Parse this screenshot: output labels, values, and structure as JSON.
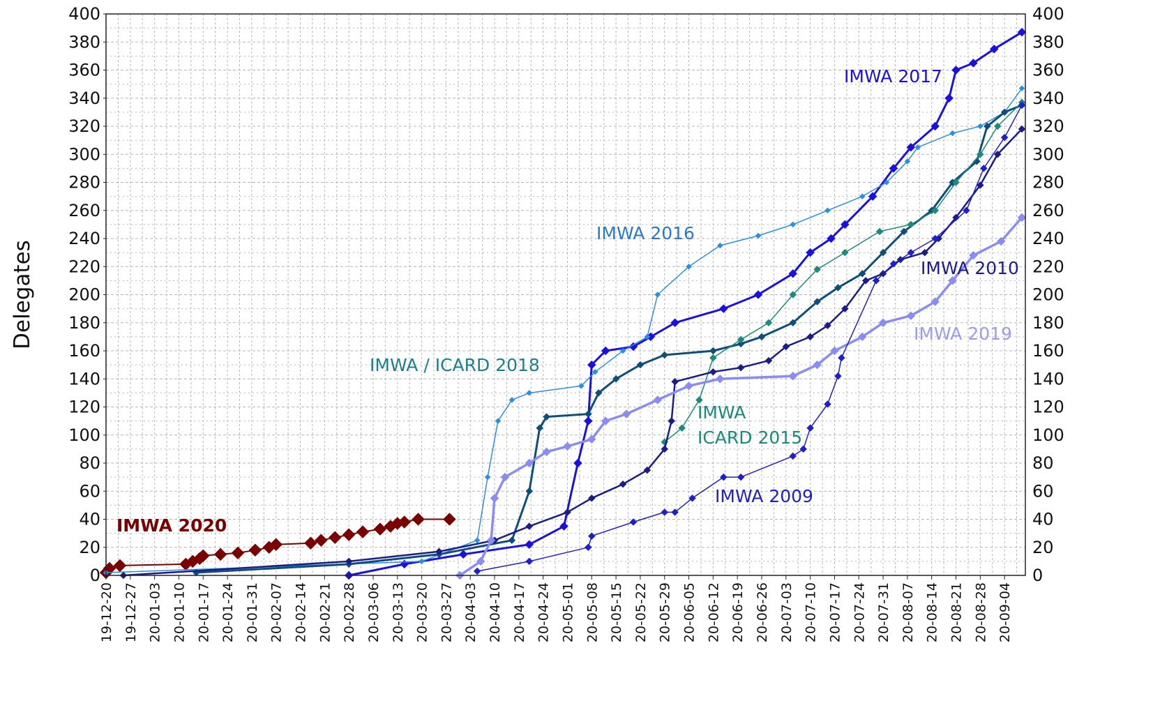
{
  "chart_data": {
    "type": "line",
    "title": "",
    "ylabel": "Delegates",
    "xlabel": "",
    "ylim": [
      0,
      400
    ],
    "yticks": [
      "0",
      "20",
      "40",
      "60",
      "80",
      "100",
      "120",
      "140",
      "160",
      "180",
      "200",
      "220",
      "240",
      "260",
      "280",
      "300",
      "320",
      "340",
      "360",
      "380",
      "400"
    ],
    "xlim": [
      "19-12-20",
      "20-09-10"
    ],
    "xticks": [
      "19-12-20",
      "19-12-27",
      "20-01-03",
      "20-01-10",
      "20-01-17",
      "20-01-24",
      "20-01-31",
      "20-02-07",
      "20-02-14",
      "20-02-21",
      "20-02-28",
      "20-03-06",
      "20-03-13",
      "20-03-20",
      "20-03-27",
      "20-04-03",
      "20-04-10",
      "20-04-17",
      "20-04-24",
      "20-05-01",
      "20-05-08",
      "20-05-15",
      "20-05-22",
      "20-05-29",
      "20-06-05",
      "20-06-12",
      "20-06-19",
      "20-06-26",
      "20-07-03",
      "20-07-10",
      "20-07-17",
      "20-07-24",
      "20-07-31",
      "20-08-07",
      "20-08-14",
      "20-08-21",
      "20-08-28",
      "20-09-04"
    ],
    "grid": true,
    "legend": "inline labels",
    "series": [
      {
        "name": "IMWA 2020",
        "color": "#7a0000",
        "points": [
          [
            "19-12-20",
            2
          ],
          [
            "19-12-21",
            5
          ],
          [
            "19-12-24",
            7
          ],
          [
            "20-01-12",
            8
          ],
          [
            "20-01-14",
            10
          ],
          [
            "20-01-16",
            12
          ],
          [
            "20-01-17",
            14
          ],
          [
            "20-01-22",
            15
          ],
          [
            "20-01-27",
            16
          ],
          [
            "20-02-01",
            18
          ],
          [
            "20-02-05",
            20
          ],
          [
            "20-02-07",
            22
          ],
          [
            "20-02-17",
            23
          ],
          [
            "20-02-20",
            25
          ],
          [
            "20-02-24",
            27
          ],
          [
            "20-02-28",
            29
          ],
          [
            "20-03-03",
            31
          ],
          [
            "20-03-08",
            33
          ],
          [
            "20-03-11",
            35
          ],
          [
            "20-03-13",
            37
          ],
          [
            "20-03-15",
            38
          ],
          [
            "20-03-19",
            40
          ],
          [
            "20-03-28",
            40
          ]
        ]
      },
      {
        "name": "IMWA 2017",
        "color": "#1a10e0",
        "points": [
          [
            "20-02-28",
            0
          ],
          [
            "20-03-15",
            8
          ],
          [
            "20-04-01",
            15
          ],
          [
            "20-04-20",
            22
          ],
          [
            "20-04-30",
            35
          ],
          [
            "20-05-04",
            80
          ],
          [
            "20-05-07",
            110
          ],
          [
            "20-05-08",
            150
          ],
          [
            "20-05-12",
            160
          ],
          [
            "20-05-20",
            163
          ],
          [
            "20-05-25",
            170
          ],
          [
            "20-06-01",
            180
          ],
          [
            "20-06-15",
            190
          ],
          [
            "20-06-25",
            200
          ],
          [
            "20-07-05",
            215
          ],
          [
            "20-07-10",
            230
          ],
          [
            "20-07-16",
            240
          ],
          [
            "20-07-20",
            250
          ],
          [
            "20-07-28",
            270
          ],
          [
            "20-08-03",
            290
          ],
          [
            "20-08-08",
            305
          ],
          [
            "20-08-15",
            320
          ],
          [
            "20-08-19",
            340
          ],
          [
            "20-08-21",
            360
          ],
          [
            "20-08-26",
            365
          ],
          [
            "20-09-01",
            375
          ],
          [
            "20-09-09",
            387
          ]
        ]
      },
      {
        "name": "IMWA 2016",
        "color": "#2b8fe0",
        "points": [
          [
            "19-12-20",
            2
          ],
          [
            "20-03-20",
            10
          ],
          [
            "20-04-05",
            25
          ],
          [
            "20-04-08",
            70
          ],
          [
            "20-04-11",
            110
          ],
          [
            "20-04-15",
            125
          ],
          [
            "20-04-20",
            130
          ],
          [
            "20-05-05",
            135
          ],
          [
            "20-05-09",
            145
          ],
          [
            "20-05-17",
            160
          ],
          [
            "20-05-24",
            170
          ],
          [
            "20-05-27",
            200
          ],
          [
            "20-06-05",
            220
          ],
          [
            "20-06-14",
            235
          ],
          [
            "20-06-25",
            242
          ],
          [
            "20-07-05",
            250
          ],
          [
            "20-07-15",
            260
          ],
          [
            "20-07-25",
            270
          ],
          [
            "20-08-01",
            280
          ],
          [
            "20-08-07",
            295
          ],
          [
            "20-08-10",
            305
          ],
          [
            "20-08-20",
            315
          ],
          [
            "20-08-28",
            320
          ],
          [
            "20-09-04",
            330
          ],
          [
            "20-09-09",
            347
          ]
        ]
      },
      {
        "name": "IMWA / ICARD 2018",
        "color": "#0e4f7a",
        "points": [
          [
            "20-01-15",
            2
          ],
          [
            "20-02-28",
            8
          ],
          [
            "20-03-25",
            15
          ],
          [
            "20-04-15",
            25
          ],
          [
            "20-04-20",
            60
          ],
          [
            "20-04-23",
            105
          ],
          [
            "20-04-25",
            113
          ],
          [
            "20-05-07",
            115
          ],
          [
            "20-05-10",
            130
          ],
          [
            "20-05-15",
            140
          ],
          [
            "20-05-22",
            150
          ],
          [
            "20-05-29",
            157
          ],
          [
            "20-06-12",
            160
          ],
          [
            "20-06-20",
            165
          ],
          [
            "20-06-26",
            170
          ],
          [
            "20-07-05",
            180
          ],
          [
            "20-07-12",
            195
          ],
          [
            "20-07-18",
            205
          ],
          [
            "20-07-25",
            215
          ],
          [
            "20-07-31",
            230
          ],
          [
            "20-08-06",
            245
          ],
          [
            "20-08-14",
            260
          ],
          [
            "20-08-20",
            280
          ],
          [
            "20-08-27",
            295
          ],
          [
            "20-08-30",
            320
          ],
          [
            "20-09-04",
            330
          ],
          [
            "20-09-09",
            335
          ]
        ]
      },
      {
        "name": "IMWA ICARD 2015",
        "color": "#1c8a7a",
        "points": [
          [
            "20-05-29",
            95
          ],
          [
            "20-06-03",
            105
          ],
          [
            "20-06-08",
            125
          ],
          [
            "20-06-12",
            155
          ],
          [
            "20-06-20",
            168
          ],
          [
            "20-06-28",
            180
          ],
          [
            "20-07-05",
            200
          ],
          [
            "20-07-12",
            218
          ],
          [
            "20-07-20",
            230
          ],
          [
            "20-07-30",
            245
          ],
          [
            "20-08-08",
            250
          ],
          [
            "20-08-15",
            260
          ],
          [
            "20-08-21",
            280
          ],
          [
            "20-08-28",
            300
          ],
          [
            "20-09-02",
            320
          ],
          [
            "20-09-09",
            337
          ]
        ]
      },
      {
        "name": "IMWA 2010",
        "color": "#1c1c88",
        "points": [
          [
            "19-12-25",
            0
          ],
          [
            "20-02-28",
            10
          ],
          [
            "20-03-25",
            17
          ],
          [
            "20-04-10",
            25
          ],
          [
            "20-04-20",
            35
          ],
          [
            "20-05-01",
            45
          ],
          [
            "20-05-08",
            55
          ],
          [
            "20-05-17",
            65
          ],
          [
            "20-05-24",
            75
          ],
          [
            "20-05-29",
            90
          ],
          [
            "20-05-31",
            110
          ],
          [
            "20-06-01",
            138
          ],
          [
            "20-06-12",
            145
          ],
          [
            "20-06-20",
            148
          ],
          [
            "20-06-28",
            153
          ],
          [
            "20-07-03",
            163
          ],
          [
            "20-07-10",
            170
          ],
          [
            "20-07-15",
            178
          ],
          [
            "20-07-20",
            190
          ],
          [
            "20-07-26",
            210
          ],
          [
            "20-07-31",
            215
          ],
          [
            "20-08-05",
            225
          ],
          [
            "20-08-12",
            230
          ],
          [
            "20-08-16",
            240
          ],
          [
            "20-08-21",
            255
          ],
          [
            "20-08-28",
            278
          ],
          [
            "20-09-02",
            300
          ],
          [
            "20-09-09",
            318
          ]
        ]
      },
      {
        "name": "IMWA 2019",
        "color": "#8b8cf0",
        "points": [
          [
            "20-03-31",
            0
          ],
          [
            "20-04-06",
            10
          ],
          [
            "20-04-09",
            25
          ],
          [
            "20-04-10",
            55
          ],
          [
            "20-04-13",
            70
          ],
          [
            "20-04-20",
            80
          ],
          [
            "20-04-25",
            88
          ],
          [
            "20-05-01",
            92
          ],
          [
            "20-05-08",
            97
          ],
          [
            "20-05-12",
            110
          ],
          [
            "20-05-18",
            115
          ],
          [
            "20-05-27",
            125
          ],
          [
            "20-06-05",
            135
          ],
          [
            "20-06-14",
            140
          ],
          [
            "20-07-05",
            142
          ],
          [
            "20-07-12",
            150
          ],
          [
            "20-07-17",
            160
          ],
          [
            "20-07-25",
            170
          ],
          [
            "20-07-31",
            180
          ],
          [
            "20-08-08",
            185
          ],
          [
            "20-08-15",
            195
          ],
          [
            "20-08-20",
            210
          ],
          [
            "20-08-26",
            228
          ],
          [
            "20-09-03",
            238
          ],
          [
            "20-09-09",
            255
          ]
        ]
      },
      {
        "name": "IMWA 2009",
        "color": "#2020c8",
        "points": [
          [
            "20-04-05",
            3
          ],
          [
            "20-04-20",
            10
          ],
          [
            "20-05-07",
            20
          ],
          [
            "20-05-08",
            28
          ],
          [
            "20-05-20",
            38
          ],
          [
            "20-05-29",
            45
          ],
          [
            "20-06-01",
            45
          ],
          [
            "20-06-06",
            55
          ],
          [
            "20-06-15",
            70
          ],
          [
            "20-06-20",
            70
          ],
          [
            "20-07-05",
            85
          ],
          [
            "20-07-08",
            90
          ],
          [
            "20-07-10",
            105
          ],
          [
            "20-07-15",
            122
          ],
          [
            "20-07-18",
            142
          ],
          [
            "20-07-19",
            155
          ],
          [
            "20-07-29",
            210
          ],
          [
            "20-08-03",
            222
          ],
          [
            "20-08-08",
            230
          ],
          [
            "20-08-15",
            240
          ],
          [
            "20-08-24",
            260
          ],
          [
            "20-08-29",
            290
          ],
          [
            "20-09-04",
            312
          ],
          [
            "20-09-09",
            335
          ]
        ]
      }
    ],
    "labels": [
      {
        "text": "IMWA 2020",
        "series": "IMWA 2020",
        "bold": true
      },
      {
        "text": "IMWA 2017",
        "series": "IMWA 2017"
      },
      {
        "text": "IMWA 2016",
        "series": "IMWA 2016"
      },
      {
        "text": "IMWA / ICARD 2018",
        "series": "IMWA / ICARD 2018"
      },
      {
        "text": "IMWA",
        "series": "IMWA ICARD 2015"
      },
      {
        "text": "ICARD 2015",
        "series": "IMWA ICARD 2015"
      },
      {
        "text": "IMWA 2010",
        "series": "IMWA 2010"
      },
      {
        "text": "IMWA 2019",
        "series": "IMWA 2019"
      },
      {
        "text": "IMWA 2009",
        "series": "IMWA 2009"
      }
    ]
  }
}
